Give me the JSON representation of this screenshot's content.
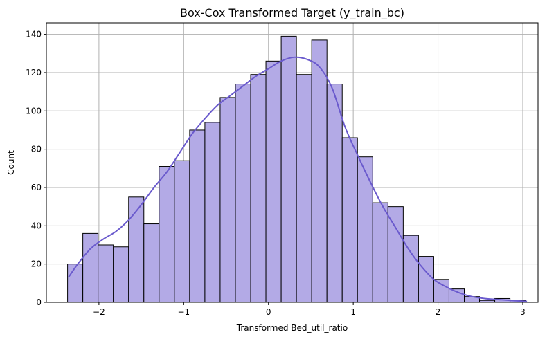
{
  "chart_data": {
    "type": "bar",
    "title": "Box-Cox Transformed Target (y_train_bc)",
    "xlabel": "Transformed Bed_util_ratio",
    "ylabel": "Count",
    "xlim": [
      -2.62,
      3.18
    ],
    "ylim": [
      0,
      146
    ],
    "grid": true,
    "bin_start": -2.37,
    "bin_width": 0.18,
    "counts": [
      20,
      36,
      30,
      29,
      55,
      41,
      71,
      74,
      90,
      94,
      107,
      114,
      119,
      126,
      139,
      119,
      137,
      114,
      86,
      76,
      52,
      50,
      35,
      24,
      12,
      7,
      3,
      1,
      2,
      1
    ],
    "kde": {
      "x": [
        -2.36,
        -2.25,
        -2.1,
        -1.95,
        -1.8,
        -1.65,
        -1.5,
        -1.35,
        -1.2,
        -1.05,
        -0.9,
        -0.75,
        -0.6,
        -0.45,
        -0.3,
        -0.15,
        0.0,
        0.15,
        0.3,
        0.45,
        0.6,
        0.75,
        0.9,
        1.05,
        1.2,
        1.35,
        1.5,
        1.65,
        1.8,
        1.95,
        2.1,
        2.25,
        2.4,
        2.55,
        2.7,
        2.85,
        3.05
      ],
      "y": [
        13,
        20,
        28,
        33,
        37,
        43,
        51,
        60,
        68,
        78,
        88,
        96,
        103,
        108,
        113,
        118,
        122,
        126,
        128,
        127,
        123,
        112,
        92,
        77,
        63,
        50,
        39,
        28,
        19,
        12,
        8,
        5,
        3,
        2,
        1.5,
        1,
        0.5
      ]
    },
    "xticks": [
      {
        "value": -2,
        "label": "−2"
      },
      {
        "value": -1,
        "label": "−1"
      },
      {
        "value": 0,
        "label": "0"
      },
      {
        "value": 1,
        "label": "1"
      },
      {
        "value": 2,
        "label": "2"
      },
      {
        "value": 3,
        "label": "3"
      }
    ],
    "yticks": [
      {
        "value": 0,
        "label": "0"
      },
      {
        "value": 20,
        "label": "20"
      },
      {
        "value": 40,
        "label": "40"
      },
      {
        "value": 60,
        "label": "60"
      },
      {
        "value": 80,
        "label": "80"
      },
      {
        "value": 100,
        "label": "100"
      },
      {
        "value": 120,
        "label": "120"
      },
      {
        "value": 140,
        "label": "140"
      }
    ],
    "colors": {
      "bar_fill": "#b3aae6",
      "bar_edge": "#000000",
      "kde_line": "#6a5acd",
      "grid": "#b0b0b0"
    }
  }
}
